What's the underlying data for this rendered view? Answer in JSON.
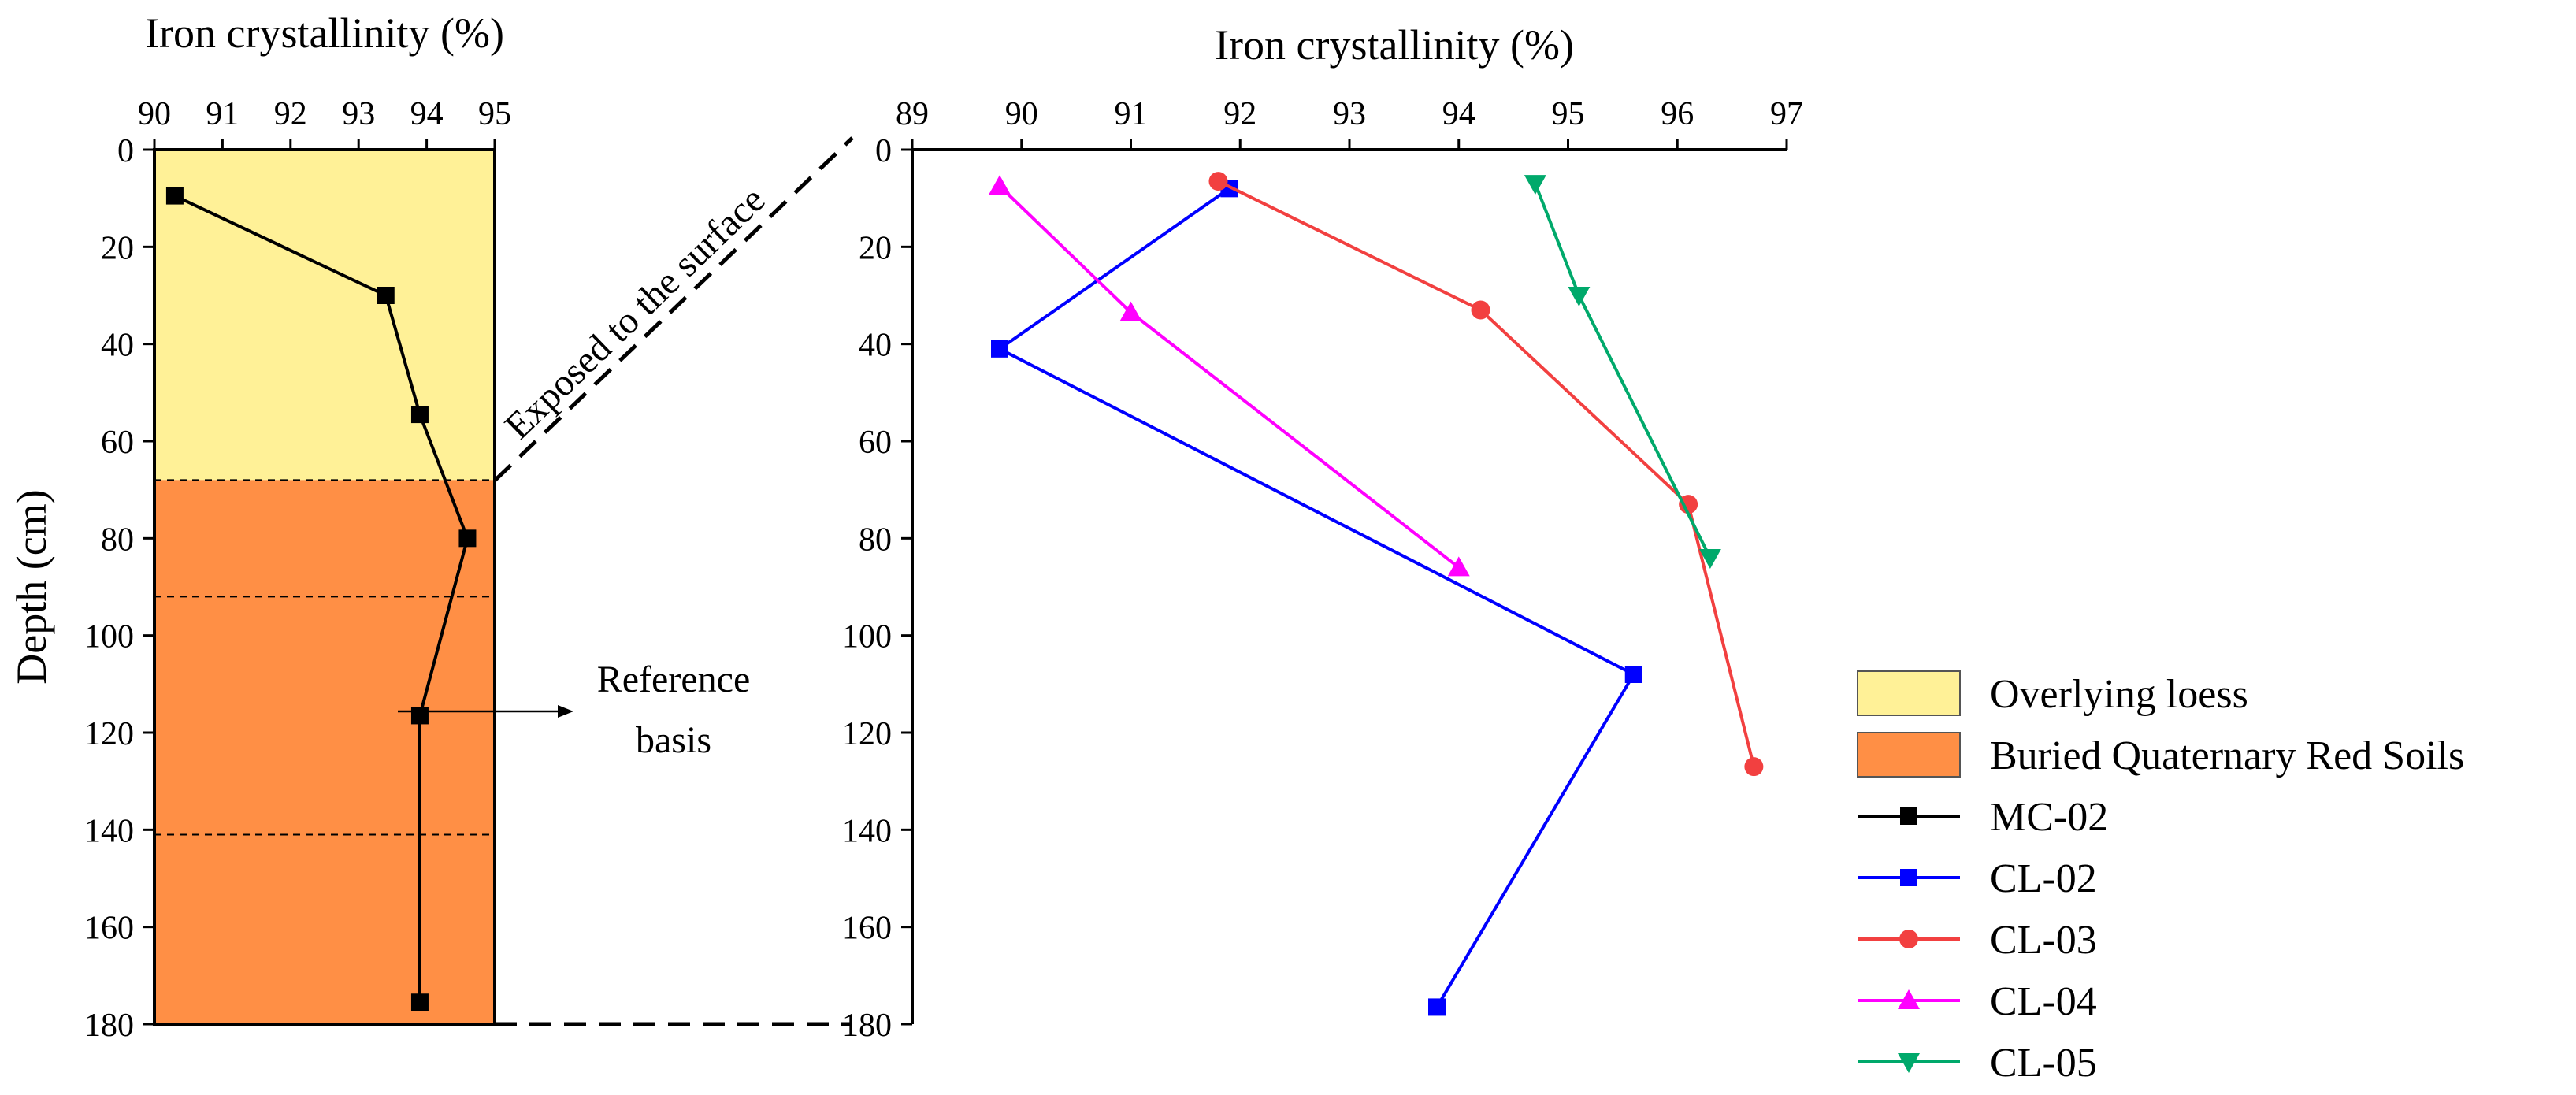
{
  "chart_data": [
    {
      "type": "line",
      "title": "Iron crystallinity (%)",
      "xlabel": "Iron crystallinity (%)",
      "ylabel": "Depth (cm)",
      "xlim": [
        90,
        95
      ],
      "ylim": [
        0,
        180
      ],
      "x_ticks": [
        90,
        91,
        92,
        93,
        94,
        95
      ],
      "y_ticks": [
        0,
        20,
        40,
        60,
        80,
        100,
        120,
        140,
        160,
        180
      ],
      "y_reversed": true,
      "x_axis_position": "top",
      "layers": [
        {
          "name": "Overlying loess",
          "depth_from": 0,
          "depth_to": 68,
          "color": "#FFF197"
        },
        {
          "name": "Buried Quaternary Red Soils",
          "depth_from": 68,
          "depth_to": 180,
          "color": "#FF8F45"
        }
      ],
      "dashed_depths": [
        68,
        92,
        141
      ],
      "series": [
        {
          "name": "MC-02",
          "color": "#000000",
          "marker": "square",
          "x": [
            90.3,
            93.4,
            93.9,
            94.6,
            93.9,
            93.9
          ],
          "y": [
            9.5,
            30,
            54.5,
            80,
            116.5,
            175.5
          ]
        }
      ],
      "annotations": [
        {
          "text_lines": [
            "Reference",
            "basis"
          ],
          "arrow_from_depth": 116.5
        },
        {
          "text": "Exposed to the surface"
        }
      ]
    },
    {
      "type": "line",
      "title": "Iron crystallinity (%)",
      "xlabel": "Iron crystallinity (%)",
      "ylabel": "",
      "xlim": [
        89,
        97
      ],
      "ylim": [
        0,
        180
      ],
      "x_ticks": [
        89,
        90,
        91,
        92,
        93,
        94,
        95,
        96,
        97
      ],
      "y_ticks": [
        0,
        20,
        40,
        60,
        80,
        100,
        120,
        140,
        160,
        180
      ],
      "y_reversed": true,
      "x_axis_position": "top",
      "series": [
        {
          "name": "CL-02",
          "color": "#0000FF",
          "marker": "square",
          "x": [
            91.9,
            89.8,
            95.6,
            93.8
          ],
          "y": [
            8,
            41,
            108,
            176.5
          ]
        },
        {
          "name": "CL-03",
          "color": "#F24040",
          "marker": "circle",
          "x": [
            91.8,
            94.2,
            96.1,
            96.7
          ],
          "y": [
            6.5,
            33,
            73,
            127
          ]
        },
        {
          "name": "CL-04",
          "color": "#FF00FF",
          "marker": "triangle-up",
          "x": [
            89.8,
            91.0,
            94.0
          ],
          "y": [
            7.5,
            33.5,
            86
          ]
        },
        {
          "name": "CL-05",
          "color": "#00A96B",
          "marker": "triangle-down",
          "x": [
            94.7,
            95.1,
            96.3
          ],
          "y": [
            7,
            30,
            84
          ]
        }
      ]
    }
  ],
  "legend": {
    "position": "bottom-right",
    "entries": [
      {
        "label": "Overlying loess",
        "kind": "box",
        "color": "#FFF197"
      },
      {
        "label": "Buried Quaternary Red Soils",
        "kind": "box",
        "color": "#FF8F45"
      },
      {
        "label": "MC-02",
        "kind": "line",
        "color": "#000000",
        "marker": "square"
      },
      {
        "label": "CL-02",
        "kind": "line",
        "color": "#0000FF",
        "marker": "square"
      },
      {
        "label": "CL-03",
        "kind": "line",
        "color": "#F24040",
        "marker": "circle"
      },
      {
        "label": "CL-04",
        "kind": "line",
        "color": "#FF00FF",
        "marker": "triangle-up"
      },
      {
        "label": "CL-05",
        "kind": "line",
        "color": "#00A96B",
        "marker": "triangle-down"
      }
    ]
  }
}
